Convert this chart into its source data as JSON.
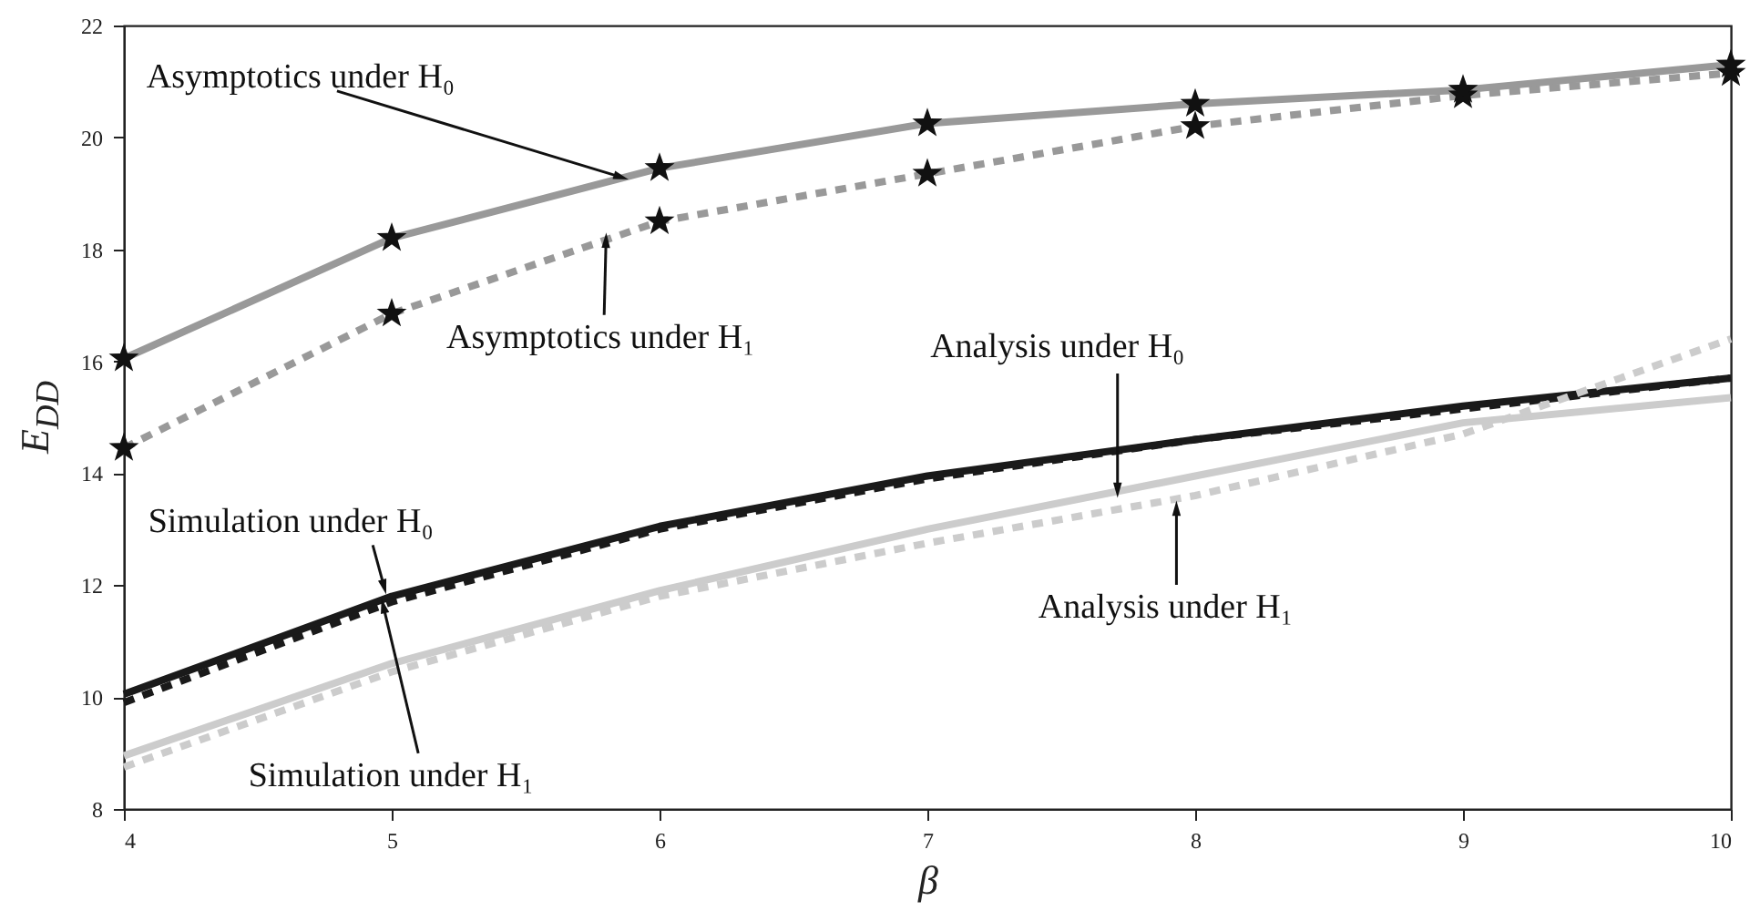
{
  "chart_data": {
    "type": "line",
    "xlabel": "β",
    "ylabel": "E$_{DD}$",
    "x": [
      4,
      5,
      6,
      7,
      8,
      9,
      10
    ],
    "series": [
      {
        "color": "#999999",
        "line_style": "solid",
        "marker": "star",
        "values": [
          16.05,
          18.2,
          19.45,
          20.25,
          20.6,
          20.85,
          21.3
        ]
      },
      {
        "color": "#999999",
        "line_style": "dashed",
        "marker": "star",
        "values": [
          14.45,
          16.85,
          18.5,
          19.35,
          20.2,
          20.75,
          21.15
        ]
      },
      {
        "color": "#1a1a1a",
        "line_style": "solid",
        "values": [
          10.05,
          11.8,
          13.05,
          13.95,
          14.6,
          15.2,
          15.7
        ]
      },
      {
        "color": "#1a1a1a",
        "line_style": "dashed",
        "values": [
          9.9,
          11.7,
          13.0,
          13.9,
          14.6,
          15.15,
          15.7
        ]
      },
      {
        "color": "#cccccc",
        "line_style": "solid",
        "values": [
          8.95,
          10.6,
          11.9,
          13.0,
          13.95,
          14.9,
          15.35
        ]
      },
      {
        "color": "#cccccc",
        "line_style": "dashed",
        "values": [
          8.75,
          10.45,
          11.8,
          12.75,
          13.6,
          14.7,
          16.4
        ]
      }
    ],
    "xlim": [
      4,
      10
    ],
    "ylim": [
      8,
      22
    ],
    "xticks": [
      4,
      5,
      6,
      7,
      8,
      9,
      10
    ],
    "yticks": [
      8,
      10,
      12,
      14,
      16,
      18,
      20,
      22
    ],
    "annotations": [
      {
        "text": "Asymptotics under H₀",
        "x": 5.85,
        "y": 19.3
      },
      {
        "text": "Asymptotics under H₁",
        "x": 5.8,
        "y": 18.13
      },
      {
        "text": "Simulation under H₀",
        "x": 4.97,
        "y": 12.0
      },
      {
        "text": "Simulation under H₁",
        "x": 4.97,
        "y": 11.6
      },
      {
        "text": "Analysis under H₀",
        "x": 7.71,
        "y": 13.73
      },
      {
        "text": "Analysis under H₁",
        "x": 7.93,
        "y": 13.34
      }
    ]
  }
}
